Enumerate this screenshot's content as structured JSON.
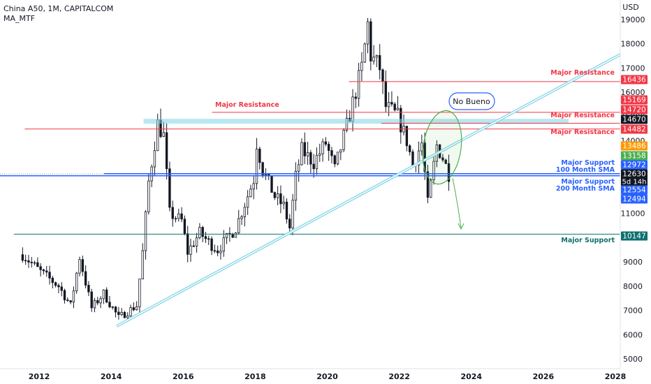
{
  "header": {
    "title": "China A50, 1M, CAPITALCOM",
    "indicator": "MA_MTF",
    "currency": "USD"
  },
  "colors": {
    "up": "#ffffff",
    "down": "#131722",
    "red": "#f23645",
    "blue": "#2962ff",
    "teal": "#0e6f6f",
    "cyan": "#7fd3e6",
    "green": "#4caf50",
    "dark": "#131722",
    "orange": "#ff9800"
  },
  "chart_data": {
    "type": "candlestick",
    "symbol": "China A50",
    "interval": "1M",
    "x_ticks": [
      "2012",
      "2014",
      "2016",
      "2018",
      "2020",
      "2022",
      "2024",
      "2026",
      "2028"
    ],
    "y_ticks": [
      5000,
      6000,
      7000,
      8000,
      9000,
      10000,
      11000,
      12000,
      13000,
      14000,
      15000,
      16000,
      17000,
      18000,
      19000
    ],
    "ylim": [
      4600,
      19800
    ],
    "anchors": [
      [
        "2011-07",
        9300
      ],
      [
        "2012-01",
        8600
      ],
      [
        "2012-07",
        8000
      ],
      [
        "2012-11",
        7200
      ],
      [
        "2013-02",
        9200
      ],
      [
        "2013-06",
        7100
      ],
      [
        "2013-10",
        7700
      ],
      [
        "2014-03",
        6700
      ],
      [
        "2014-09",
        7200
      ],
      [
        "2014-11",
        9400
      ],
      [
        "2015-01",
        12300
      ],
      [
        "2015-04",
        14700
      ],
      [
        "2015-06",
        14200
      ],
      [
        "2015-08",
        11000
      ],
      [
        "2015-12",
        10700
      ],
      [
        "2016-02",
        9400
      ],
      [
        "2016-06",
        10200
      ],
      [
        "2016-10",
        9700
      ],
      [
        "2016-12",
        9500
      ],
      [
        "2017-06",
        10400
      ],
      [
        "2017-12",
        12400
      ],
      [
        "2018-01",
        13900
      ],
      [
        "2018-03",
        12800
      ],
      [
        "2018-07",
        11700
      ],
      [
        "2018-10",
        11300
      ],
      [
        "2018-12",
        10400
      ],
      [
        "2019-02",
        12500
      ],
      [
        "2019-04",
        13600
      ],
      [
        "2019-08",
        13100
      ],
      [
        "2019-12",
        13900
      ],
      [
        "2020-03",
        12800
      ],
      [
        "2020-07",
        14600
      ],
      [
        "2020-12",
        17000
      ],
      [
        "2021-02",
        18800
      ],
      [
        "2021-03",
        17500
      ],
      [
        "2021-06",
        17000
      ],
      [
        "2021-08",
        15400
      ],
      [
        "2021-12",
        15000
      ],
      [
        "2022-03",
        14000
      ],
      [
        "2022-05",
        13000
      ],
      [
        "2022-08",
        13900
      ],
      [
        "2022-10",
        11400
      ],
      [
        "2022-11",
        12200
      ],
      [
        "2023-01",
        13800
      ],
      [
        "2023-03",
        13300
      ],
      [
        "2023-05",
        12630
      ]
    ],
    "levels": [
      {
        "name": "Major Resistance",
        "value": 16436,
        "color": "red",
        "label_color": "red"
      },
      {
        "name": "Major Resistance",
        "value": 15169,
        "color": "red",
        "label_color": "red"
      },
      {
        "name": "Major Resistance",
        "value": 14482,
        "color": "red",
        "label_color": "red"
      },
      {
        "name": "Major Support",
        "value": 10147,
        "color": "teal",
        "label_color": "teal"
      }
    ],
    "moving_averages": [
      {
        "name": "100 Month SMA",
        "value": 12630
      },
      {
        "name": "200 Month SMA",
        "value": 12554
      }
    ],
    "price_tags": [
      {
        "value": 16436,
        "color": "red"
      },
      {
        "value": 15169,
        "color": "red"
      },
      {
        "value": 14720,
        "color": "red"
      },
      {
        "value": 14670,
        "color": "dark"
      },
      {
        "value": 14482,
        "color": "red"
      },
      {
        "value": 13486,
        "color": "orange"
      },
      {
        "value": 13158,
        "color": "green"
      },
      {
        "value": 12972,
        "color": "blue"
      },
      {
        "value": 12630,
        "color": "dark",
        "sub": "5d 14h"
      },
      {
        "value": 12554,
        "color": "blue"
      },
      {
        "value": 12494,
        "color": "blue"
      },
      {
        "value": 10147,
        "color": "teal"
      }
    ],
    "annotations": {
      "callout": "No Bueno",
      "resistance_text": "Major Resistance",
      "support_text": "Major Support",
      "sma100_text": "100 Month SMA",
      "sma200_text": "200 Month SMA"
    }
  }
}
